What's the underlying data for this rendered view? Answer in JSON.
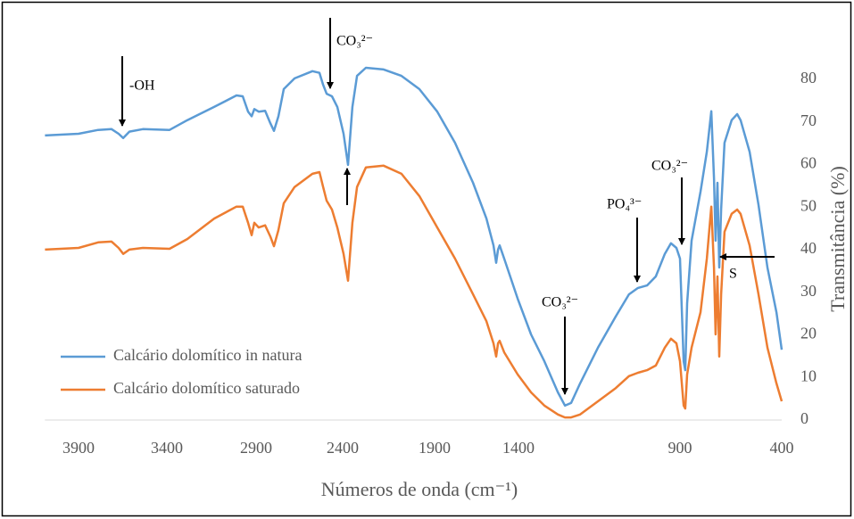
{
  "chart_data": {
    "type": "line",
    "x_label": "Números de onda (cm⁻¹)",
    "y_label": "Transmitância (%)",
    "x": [
      4090,
      3900,
      3789,
      3713,
      3673,
      3647,
      3612,
      3536,
      3385,
      3285,
      3135,
      3010,
      2975,
      2945,
      2925,
      2910,
      2885,
      2848,
      2818,
      2797,
      2771,
      2740,
      2678,
      2575,
      2534,
      2513,
      2493,
      2462,
      2431,
      2395,
      2371,
      2347,
      2322,
      2274,
      2177,
      2080,
      1983,
      1884,
      1778,
      1671,
      1591,
      1549,
      1533,
      1522,
      1512,
      1485,
      1405,
      1361,
      1320,
      1278,
      1256,
      1237,
      1209,
      1154,
      1099,
      1058,
      1030,
      1002,
      975,
      947,
      928,
      911,
      900,
      882,
      874,
      865,
      843,
      799,
      768,
      746,
      733,
      725,
      716,
      707,
      698,
      681,
      646,
      619,
      602,
      558,
      514,
      470,
      426,
      400
    ],
    "series": [
      {
        "name": "Calcário dolomítico in natura",
        "color": "#5b9bd5",
        "values": [
          66.8,
          67.2,
          68.1,
          68.3,
          67.2,
          66.2,
          67.7,
          68.3,
          68.1,
          70.4,
          73.5,
          76.2,
          76.0,
          72.4,
          71.3,
          73.0,
          72.4,
          72.6,
          69.7,
          67.9,
          71.3,
          77.7,
          80.2,
          81.9,
          81.5,
          78.7,
          76.6,
          76.0,
          73.5,
          67.2,
          59.9,
          73.5,
          80.8,
          82.7,
          82.3,
          80.8,
          77.7,
          72.4,
          65.1,
          55.7,
          47.3,
          41.0,
          36.9,
          40.0,
          41.0,
          37.9,
          28.5,
          20.1,
          13.8,
          6.5,
          3.4,
          4.0,
          8.6,
          17.0,
          24.3,
          29.5,
          31.0,
          31.6,
          33.7,
          39.0,
          41.5,
          40.4,
          37.9,
          13.8,
          11.7,
          27.4,
          42.1,
          53.6,
          63.0,
          72.5,
          56.8,
          42.1,
          55.7,
          35.8,
          49.4,
          65.1,
          70.4,
          71.8,
          70.4,
          63.0,
          50.5,
          35.8,
          25.3,
          16.5
        ]
      },
      {
        "name": "Calcário dolomítico saturado",
        "color": "#ed7d31",
        "values": [
          40.0,
          40.4,
          41.7,
          41.9,
          40.4,
          39.0,
          40.0,
          40.4,
          40.2,
          42.5,
          47.3,
          50.1,
          50.1,
          46.3,
          43.4,
          46.3,
          45.2,
          45.7,
          43.1,
          40.8,
          44.6,
          50.9,
          54.7,
          57.8,
          58.2,
          54.7,
          51.5,
          49.4,
          45.2,
          39.0,
          32.7,
          46.3,
          54.7,
          59.3,
          59.7,
          57.8,
          52.6,
          45.2,
          37.9,
          29.5,
          23.2,
          18.0,
          14.9,
          18.0,
          18.6,
          15.9,
          10.7,
          6.5,
          3.4,
          1.3,
          0.6,
          0.6,
          1.3,
          4.4,
          7.5,
          10.3,
          11.1,
          11.7,
          12.8,
          17.0,
          19.1,
          18.0,
          13.8,
          3.4,
          2.7,
          10.7,
          17.0,
          25.3,
          37.9,
          50.1,
          35.8,
          20.1,
          33.7,
          14.9,
          29.5,
          44.2,
          48.4,
          49.4,
          48.4,
          41.0,
          29.5,
          17.0,
          8.6,
          4.4
        ]
      }
    ],
    "xlim": [
      4090,
      400
    ],
    "xticks": [
      3900,
      3400,
      2900,
      2400,
      1900,
      1400,
      900,
      400
    ],
    "ylim": [
      0,
      85
    ],
    "yticks": [
      0,
      10,
      20,
      30,
      40,
      50,
      60,
      70,
      80
    ],
    "grid": false,
    "legend": "lower left",
    "annotations": [
      "-OH",
      "CO₃²⁻",
      "CO₃²⁻",
      "PO₄³⁻",
      "CO₃²⁻",
      "S"
    ]
  }
}
